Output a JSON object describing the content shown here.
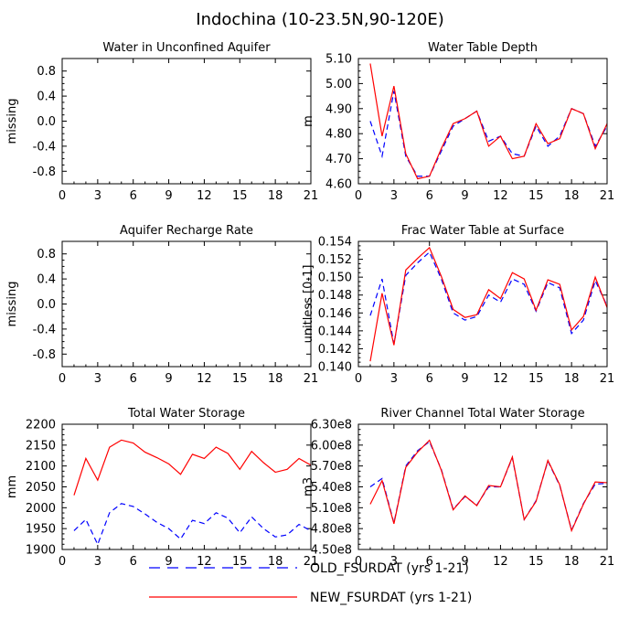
{
  "figure_title": "Indochina (10-23.5N,90-120E)",
  "colors": {
    "old": "#0000ff",
    "new": "#ff0000"
  },
  "legend": {
    "items": [
      {
        "key": "old",
        "label": "OLD_FSURDAT (yrs 1-21)",
        "style": "dashed"
      },
      {
        "key": "new",
        "label": "NEW_FSURDAT (yrs 1-21)",
        "style": "solid"
      }
    ]
  },
  "chart_data": [
    {
      "id": "water-unconfined-aquifer",
      "type": "line",
      "title": "Water in Unconfined Aquifer",
      "xlabel": "",
      "ylabel": "missing",
      "xlim": [
        0,
        21
      ],
      "ylim": [
        -1.0,
        1.0
      ],
      "xticks": [
        0,
        3,
        6,
        9,
        12,
        15,
        18,
        21
      ],
      "yticks": [
        -0.8,
        -0.4,
        0.0,
        0.4,
        0.8
      ],
      "ytick_labels": [
        "-0.8",
        "-0.4",
        "0.0",
        "0.4",
        "0.8"
      ],
      "series": []
    },
    {
      "id": "water-table-depth",
      "type": "line",
      "title": "Water Table Depth",
      "xlabel": "",
      "ylabel": "m",
      "xlim": [
        0,
        21
      ],
      "ylim": [
        4.6,
        5.1
      ],
      "xticks": [
        0,
        3,
        6,
        9,
        12,
        15,
        18,
        21
      ],
      "yticks": [
        4.6,
        4.7,
        4.8,
        4.9,
        5.0,
        5.1
      ],
      "ytick_labels": [
        "4.60",
        "4.70",
        "4.80",
        "4.90",
        "5.00",
        "5.10"
      ],
      "x": [
        1,
        2,
        3,
        4,
        5,
        6,
        7,
        8,
        9,
        10,
        11,
        12,
        13,
        14,
        15,
        16,
        17,
        18,
        19,
        20,
        21
      ],
      "series": [
        {
          "name": "OLD_FSURDAT (yrs 1-21)",
          "key": "old",
          "style": "dashed",
          "values": [
            4.85,
            4.71,
            4.97,
            4.71,
            4.63,
            4.63,
            4.73,
            4.83,
            4.86,
            4.89,
            4.77,
            4.79,
            4.72,
            4.71,
            4.83,
            4.75,
            4.79,
            4.9,
            4.88,
            4.75,
            4.83
          ]
        },
        {
          "name": "NEW_FSURDAT (yrs 1-21)",
          "key": "new",
          "style": "solid",
          "values": [
            5.08,
            4.79,
            4.99,
            4.72,
            4.62,
            4.63,
            4.74,
            4.84,
            4.86,
            4.89,
            4.75,
            4.79,
            4.7,
            4.71,
            4.84,
            4.76,
            4.78,
            4.9,
            4.88,
            4.74,
            4.84
          ]
        }
      ]
    },
    {
      "id": "aquifer-recharge-rate",
      "type": "line",
      "title": "Aquifer Recharge Rate",
      "xlabel": "",
      "ylabel": "missing",
      "xlim": [
        0,
        21
      ],
      "ylim": [
        -1.0,
        1.0
      ],
      "xticks": [
        0,
        3,
        6,
        9,
        12,
        15,
        18,
        21
      ],
      "yticks": [
        -0.8,
        -0.4,
        0.0,
        0.4,
        0.8
      ],
      "ytick_labels": [
        "-0.8",
        "-0.4",
        "0.0",
        "0.4",
        "0.8"
      ],
      "series": []
    },
    {
      "id": "frac-water-table-surface",
      "type": "line",
      "title": "Frac Water Table at Surface",
      "xlabel": "",
      "ylabel": "unitless [0-1]",
      "xlim": [
        0,
        21
      ],
      "ylim": [
        0.14,
        0.154
      ],
      "xticks": [
        0,
        3,
        6,
        9,
        12,
        15,
        18,
        21
      ],
      "yticks": [
        0.14,
        0.142,
        0.144,
        0.146,
        0.148,
        0.15,
        0.152,
        0.154
      ],
      "ytick_labels": [
        "0.140",
        "0.142",
        "0.144",
        "0.146",
        "0.148",
        "0.150",
        "0.152",
        "0.154"
      ],
      "x": [
        1,
        2,
        3,
        4,
        5,
        6,
        7,
        8,
        9,
        10,
        11,
        12,
        13,
        14,
        15,
        16,
        17,
        18,
        19,
        20,
        21
      ],
      "series": [
        {
          "name": "OLD_FSURDAT (yrs 1-21)",
          "key": "old",
          "style": "dashed",
          "values": [
            0.1457,
            0.1498,
            0.1425,
            0.1502,
            0.1516,
            0.1528,
            0.1498,
            0.146,
            0.1452,
            0.1456,
            0.148,
            0.1472,
            0.1498,
            0.1492,
            0.1462,
            0.1494,
            0.1488,
            0.1437,
            0.1452,
            0.1496,
            0.1468
          ]
        },
        {
          "name": "NEW_FSURDAT (yrs 1-21)",
          "key": "new",
          "style": "solid",
          "values": [
            0.1406,
            0.1482,
            0.1424,
            0.1508,
            0.1521,
            0.1533,
            0.1501,
            0.1464,
            0.1455,
            0.1458,
            0.1486,
            0.1476,
            0.1505,
            0.1498,
            0.1463,
            0.1497,
            0.1492,
            0.1441,
            0.1456,
            0.15,
            0.1466
          ]
        }
      ]
    },
    {
      "id": "total-water-storage",
      "type": "line",
      "title": "Total Water Storage",
      "xlabel": "",
      "ylabel": "mm",
      "xlim": [
        0,
        21
      ],
      "ylim": [
        1900,
        2200
      ],
      "xticks": [
        0,
        3,
        6,
        9,
        12,
        15,
        18,
        21
      ],
      "yticks": [
        1900,
        1950,
        2000,
        2050,
        2100,
        2150,
        2200
      ],
      "ytick_labels": [
        "1900",
        "1950",
        "2000",
        "2050",
        "2100",
        "2150",
        "2200"
      ],
      "x": [
        1,
        2,
        3,
        4,
        5,
        6,
        7,
        8,
        9,
        10,
        11,
        12,
        13,
        14,
        15,
        16,
        17,
        18,
        19,
        20,
        21
      ],
      "series": [
        {
          "name": "OLD_FSURDAT (yrs 1-21)",
          "key": "old",
          "style": "dashed",
          "values": [
            1945,
            1972,
            1912,
            1988,
            2010,
            2003,
            1985,
            1965,
            1950,
            1925,
            1970,
            1962,
            1988,
            1975,
            1940,
            1978,
            1950,
            1930,
            1935,
            1960,
            1945
          ]
        },
        {
          "name": "NEW_FSURDAT (yrs 1-21)",
          "key": "new",
          "style": "solid",
          "values": [
            2030,
            2118,
            2066,
            2145,
            2162,
            2155,
            2133,
            2120,
            2105,
            2080,
            2128,
            2118,
            2145,
            2130,
            2092,
            2135,
            2108,
            2085,
            2092,
            2118,
            2102
          ]
        }
      ]
    },
    {
      "id": "river-channel-storage",
      "type": "line",
      "title": "River Channel Total Water Storage",
      "xlabel": "",
      "ylabel": "m3",
      "xlim": [
        0,
        21
      ],
      "ylim": [
        450000000.0,
        630000000.0
      ],
      "xticks": [
        0,
        3,
        6,
        9,
        12,
        15,
        18,
        21
      ],
      "yticks": [
        450000000.0,
        480000000.0,
        510000000.0,
        540000000.0,
        570000000.0,
        600000000.0,
        630000000.0
      ],
      "ytick_labels": [
        "4.50e8",
        "4.80e8",
        "5.10e8",
        "5.40e8",
        "5.70e8",
        "6.00e8",
        "6.30e8"
      ],
      "x": [
        1,
        2,
        3,
        4,
        5,
        6,
        7,
        8,
        9,
        10,
        11,
        12,
        13,
        14,
        15,
        16,
        17,
        18,
        19,
        20,
        21
      ],
      "series": [
        {
          "name": "OLD_FSURDAT (yrs 1-21)",
          "key": "old",
          "style": "dashed",
          "values": [
            540000000.0,
            552000000.0,
            488000000.0,
            570000000.0,
            592000000.0,
            605000000.0,
            565000000.0,
            508000000.0,
            526000000.0,
            514000000.0,
            540000000.0,
            540000000.0,
            582000000.0,
            493000000.0,
            520000000.0,
            577000000.0,
            542000000.0,
            478000000.0,
            516000000.0,
            544000000.0,
            545000000.0
          ]
        },
        {
          "name": "NEW_FSURDAT (yrs 1-21)",
          "key": "new",
          "style": "solid",
          "values": [
            515000000.0,
            549000000.0,
            487000000.0,
            568000000.0,
            590000000.0,
            607000000.0,
            564000000.0,
            507000000.0,
            527000000.0,
            513000000.0,
            542000000.0,
            540000000.0,
            583000000.0,
            493000000.0,
            519000000.0,
            578000000.0,
            543000000.0,
            477000000.0,
            515000000.0,
            547000000.0,
            546000000.0
          ]
        }
      ]
    }
  ]
}
